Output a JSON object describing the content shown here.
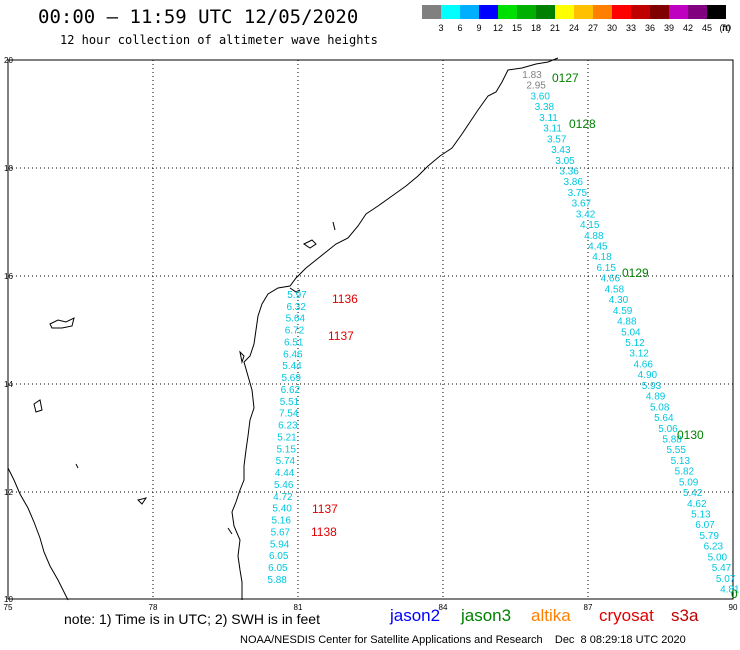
{
  "header": {
    "title": "00:00 – 11:59 UTC 12/05/2020",
    "subtitle": "12 hour collection of altimeter wave heights"
  },
  "legend": {
    "labels": [
      "3",
      "6",
      "9",
      "12",
      "15",
      "18",
      "21",
      "24",
      "27",
      "30",
      "33",
      "36",
      "39",
      "42",
      "45",
      "70"
    ],
    "unit": "(ft)",
    "colors": [
      "#808080",
      "#00ffff",
      "#00b0ff",
      "#0000ff",
      "#00e000",
      "#00b000",
      "#008000",
      "#ffff00",
      "#ffc000",
      "#ff8000",
      "#ff0000",
      "#c00000",
      "#800000",
      "#c000c0",
      "#800080",
      "#000000"
    ]
  },
  "axes": {
    "lon_labels": [
      "75",
      "78",
      "81",
      "84",
      "87",
      "90"
    ],
    "lat_labels": [
      "20",
      "18",
      "16",
      "14",
      "12",
      "10"
    ]
  },
  "tracks": [
    {
      "color": "#00c8e0",
      "values": [
        "1.83",
        "2.95",
        "3.60",
        "3.38",
        "3.11",
        "3.11",
        "3.57",
        "3.43",
        "3.05",
        "3.36",
        "3.86",
        "3.75",
        "3.67",
        "3.42",
        "4.15",
        "4.88",
        "4.45",
        "4.18",
        "6.15",
        "4.66",
        "4.58",
        "4.30",
        "4.59",
        "4.88",
        "5.04",
        "5.12",
        "3.12",
        "4.66",
        "4.90",
        "5.93",
        "4.89",
        "5.08",
        "5.64",
        "5.06",
        "5.88",
        "5.55",
        "5.13",
        "5.82",
        "5.09",
        "5.42",
        "4.62",
        "5.13",
        "6.07",
        "5.79",
        "6.23",
        "5.00",
        "5.47",
        "5.07",
        "4.81"
      ]
    },
    {
      "color": "#00c8e0",
      "values": [
        "5.97",
        "6.32",
        "5.64",
        "6.72",
        "6.51",
        "6.46",
        "5.44",
        "5.69",
        "6.62",
        "5.51",
        "7.54",
        "6.23",
        "5.21",
        "5.15",
        "5.74",
        "4.44",
        "5.46",
        "4.72",
        "5.40",
        "5.16",
        "5.67",
        "5.94",
        "6.05",
        "6.05",
        "5.88"
      ]
    }
  ],
  "time_labels": [
    {
      "text": "0127",
      "color": "#008000"
    },
    {
      "text": "0128",
      "color": "#008000"
    },
    {
      "text": "0129",
      "color": "#008000"
    },
    {
      "text": "0130",
      "color": "#008000"
    },
    {
      "text": "0",
      "color": "#008000"
    },
    {
      "text": "1136",
      "color": "#e00000"
    },
    {
      "text": "1137",
      "color": "#e00000"
    },
    {
      "text": "1137",
      "color": "#e00000"
    },
    {
      "text": "1138",
      "color": "#e00000"
    }
  ],
  "footer": {
    "note": "note: 1) Time is in UTC; 2) SWH is in feet",
    "satellites": [
      {
        "name": "jason2",
        "color": "#0000ff"
      },
      {
        "name": "jason3",
        "color": "#008000"
      },
      {
        "name": "altika",
        "color": "#ff8000"
      },
      {
        "name": "cryosat",
        "color": "#e00000"
      },
      {
        "name": "s3a",
        "color": "#c00000"
      }
    ],
    "credit": "NOAA/NESDIS Center for Satellite Applications and Research    Dec  8 08:29:18 UTC 2020"
  }
}
